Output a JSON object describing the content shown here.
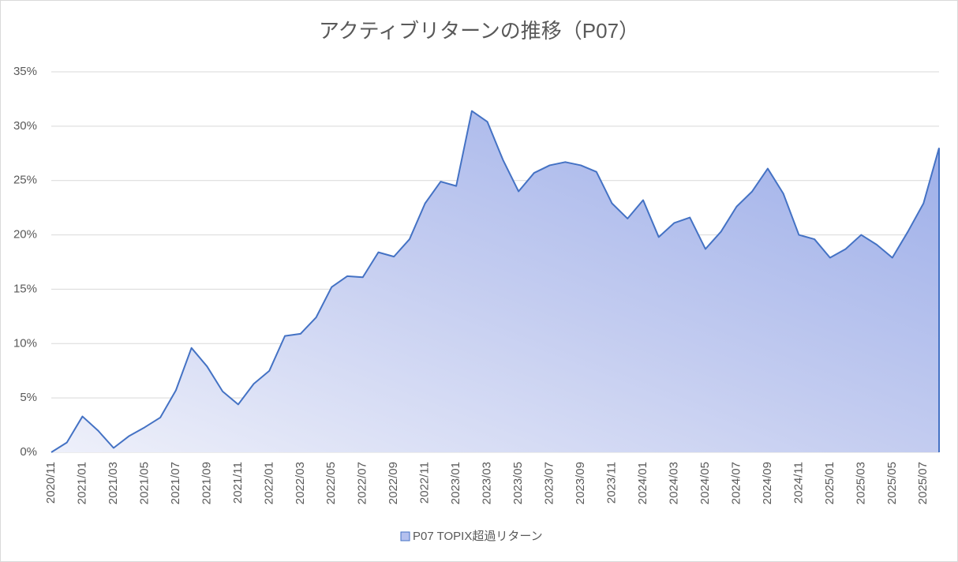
{
  "chart_data": {
    "type": "area",
    "title": "アクティブリターンの推移（P07）",
    "categories": [
      "2020/11",
      null,
      "2021/01",
      null,
      "2021/03",
      null,
      "2021/05",
      null,
      "2021/07",
      null,
      "2021/09",
      null,
      "2021/11",
      null,
      "2022/01",
      null,
      "2022/03",
      null,
      "2022/05",
      null,
      "2022/07",
      null,
      "2022/09",
      null,
      "2022/11",
      null,
      "2023/01",
      null,
      "2023/03",
      null,
      "2023/05",
      null,
      "2023/07",
      null,
      "2023/09",
      null,
      "2023/11",
      null,
      "2024/01",
      null,
      "2024/03",
      null,
      "2024/05",
      null,
      "2024/07",
      null,
      "2024/09",
      null,
      "2024/11",
      null,
      "2025/01",
      null,
      "2025/03",
      null,
      "2025/05",
      null,
      "2025/07",
      null
    ],
    "series": [
      {
        "name": "P07 TOPIX超過リターン",
        "color": "#4472c4",
        "values": [
          0,
          0.9,
          3.3,
          2.0,
          0.4,
          1.5,
          2.3,
          3.2,
          5.7,
          9.6,
          7.9,
          5.6,
          4.4,
          6.3,
          7.5,
          10.7,
          10.9,
          12.4,
          15.2,
          16.2,
          16.1,
          18.4,
          18.0,
          19.6,
          22.9,
          24.9,
          24.5,
          31.4,
          30.4,
          26.9,
          24.0,
          25.7,
          26.4,
          26.7,
          26.4,
          25.8,
          22.9,
          21.5,
          23.2,
          19.8,
          21.1,
          21.6,
          18.7,
          20.3,
          22.6,
          24.0,
          26.1,
          23.8,
          20.0,
          19.6,
          17.9,
          18.7,
          20.0,
          19.1,
          17.9,
          20.3,
          22.9,
          28.0
        ]
      }
    ],
    "ylim": [
      0,
      35
    ],
    "yticks": [
      {
        "value": 0,
        "label": "0%"
      },
      {
        "value": 5,
        "label": "5%"
      },
      {
        "value": 10,
        "label": "10%"
      },
      {
        "value": 15,
        "label": "15%"
      },
      {
        "value": 20,
        "label": "20%"
      },
      {
        "value": 25,
        "label": "25%"
      },
      {
        "value": 30,
        "label": "30%"
      },
      {
        "value": 35,
        "label": "35%"
      }
    ],
    "grid": true,
    "legend": "bottom"
  }
}
